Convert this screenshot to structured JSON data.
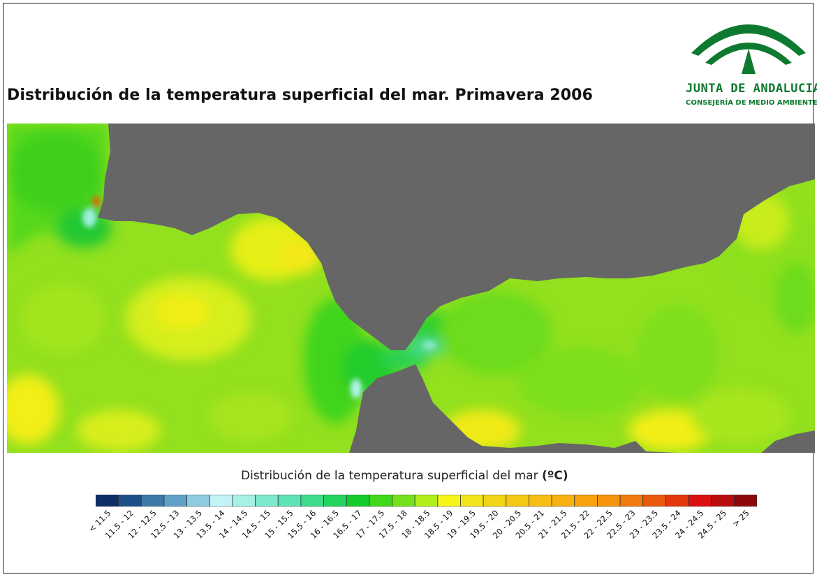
{
  "title": "Distribución de la temperatura superficial del mar. Primavera 2006",
  "logo": {
    "name": "JUNTA DE ANDALUCIA",
    "subtitle": "CONSEJERÍA DE MEDIO AMBIENTE",
    "color": "#0d7a2f"
  },
  "legend": {
    "title": "Distribución de la temperatura superficial del mar",
    "unit": "(ºC)",
    "classes": [
      {
        "label": "< 11.5",
        "color": "#0b2f66"
      },
      {
        "label": "11.5 - 12",
        "color": "#1f4f8a"
      },
      {
        "label": "12 - 12.5",
        "color": "#3c7aa8"
      },
      {
        "label": "12.5 - 13",
        "color": "#5fa2c6"
      },
      {
        "label": "13 - 13.5",
        "color": "#8ecbe0"
      },
      {
        "label": "13.5 - 14",
        "color": "#c2f3f6"
      },
      {
        "label": "14 - 14.5",
        "color": "#a6f0e6"
      },
      {
        "label": "14.5 - 15",
        "color": "#7fe9cf"
      },
      {
        "label": "15 - 15.5",
        "color": "#5ee3b4"
      },
      {
        "label": "15.5 - 16",
        "color": "#3edb8c"
      },
      {
        "label": "16 - 16.5",
        "color": "#22d45e"
      },
      {
        "label": "16.5 - 17",
        "color": "#14cb2c"
      },
      {
        "label": "17 - 17.5",
        "color": "#40d81a"
      },
      {
        "label": "17.5 - 18",
        "color": "#74e21a"
      },
      {
        "label": "18 - 18.5",
        "color": "#b3ee1a"
      },
      {
        "label": "18.5 - 19",
        "color": "#f5f518"
      },
      {
        "label": "19 - 19.5",
        "color": "#f2e416"
      },
      {
        "label": "19.5 - 20",
        "color": "#f2d514"
      },
      {
        "label": "20 - 20.5",
        "color": "#f5c814"
      },
      {
        "label": "20.5 - 21",
        "color": "#f7bd12"
      },
      {
        "label": "21 - 21.5",
        "color": "#f8b010"
      },
      {
        "label": "21.5 - 22",
        "color": "#f8a30e"
      },
      {
        "label": "22 - 22.5",
        "color": "#f6930c"
      },
      {
        "label": "22.5 - 23",
        "color": "#f17a0c"
      },
      {
        "label": "23 - 23.5",
        "color": "#ea5a0c"
      },
      {
        "label": "23.5 - 24",
        "color": "#e3380e"
      },
      {
        "label": "24 - 24.5",
        "color": "#db1010"
      },
      {
        "label": "24.5 - 25",
        "color": "#b90d0d"
      },
      {
        "label": "> 25",
        "color": "#8c0a0a"
      }
    ]
  },
  "map": {
    "land_color": "#666666",
    "sea_base_color": "#92e01e"
  }
}
